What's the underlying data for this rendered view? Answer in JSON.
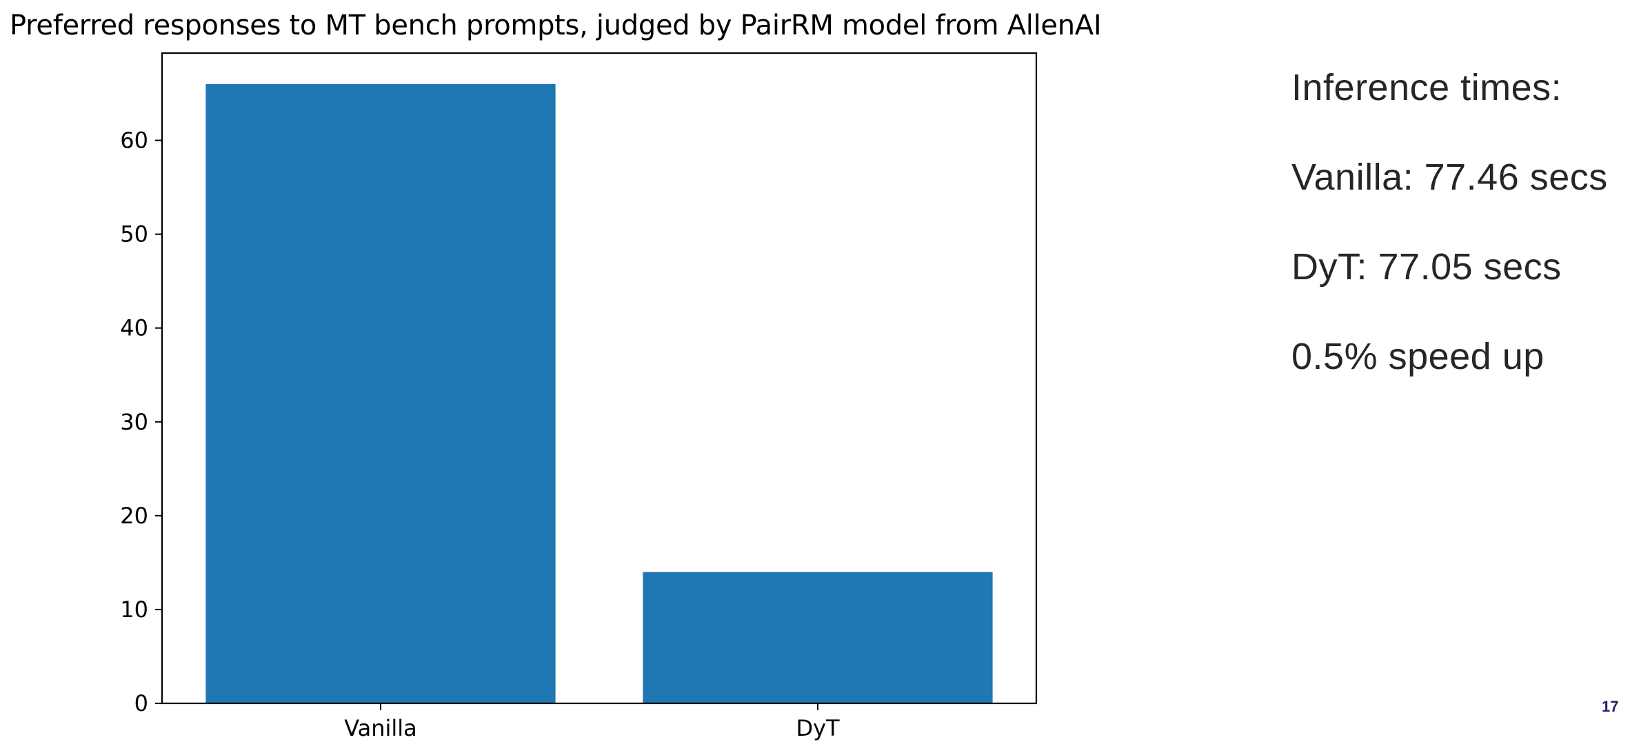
{
  "chart_data": {
    "type": "bar",
    "title": "Preferred responses to MT bench prompts, judged by PairRM model from AllenAI",
    "xlabel": "",
    "ylabel": "",
    "categories": [
      "Vanilla",
      "DyT"
    ],
    "values": [
      66,
      14
    ],
    "ylim": [
      0,
      69.3
    ],
    "yticks": [
      0,
      10,
      20,
      30,
      40,
      50,
      60
    ],
    "grid": false,
    "bar_color": "#1f77b4"
  },
  "side_panel": {
    "heading": "Inference times:",
    "vanilla_time": "Vanilla: 77.46 secs",
    "dyt_time": "DyT: 77.05 secs",
    "speedup": "0.5% speed up"
  },
  "slide": {
    "page_number": "17"
  }
}
